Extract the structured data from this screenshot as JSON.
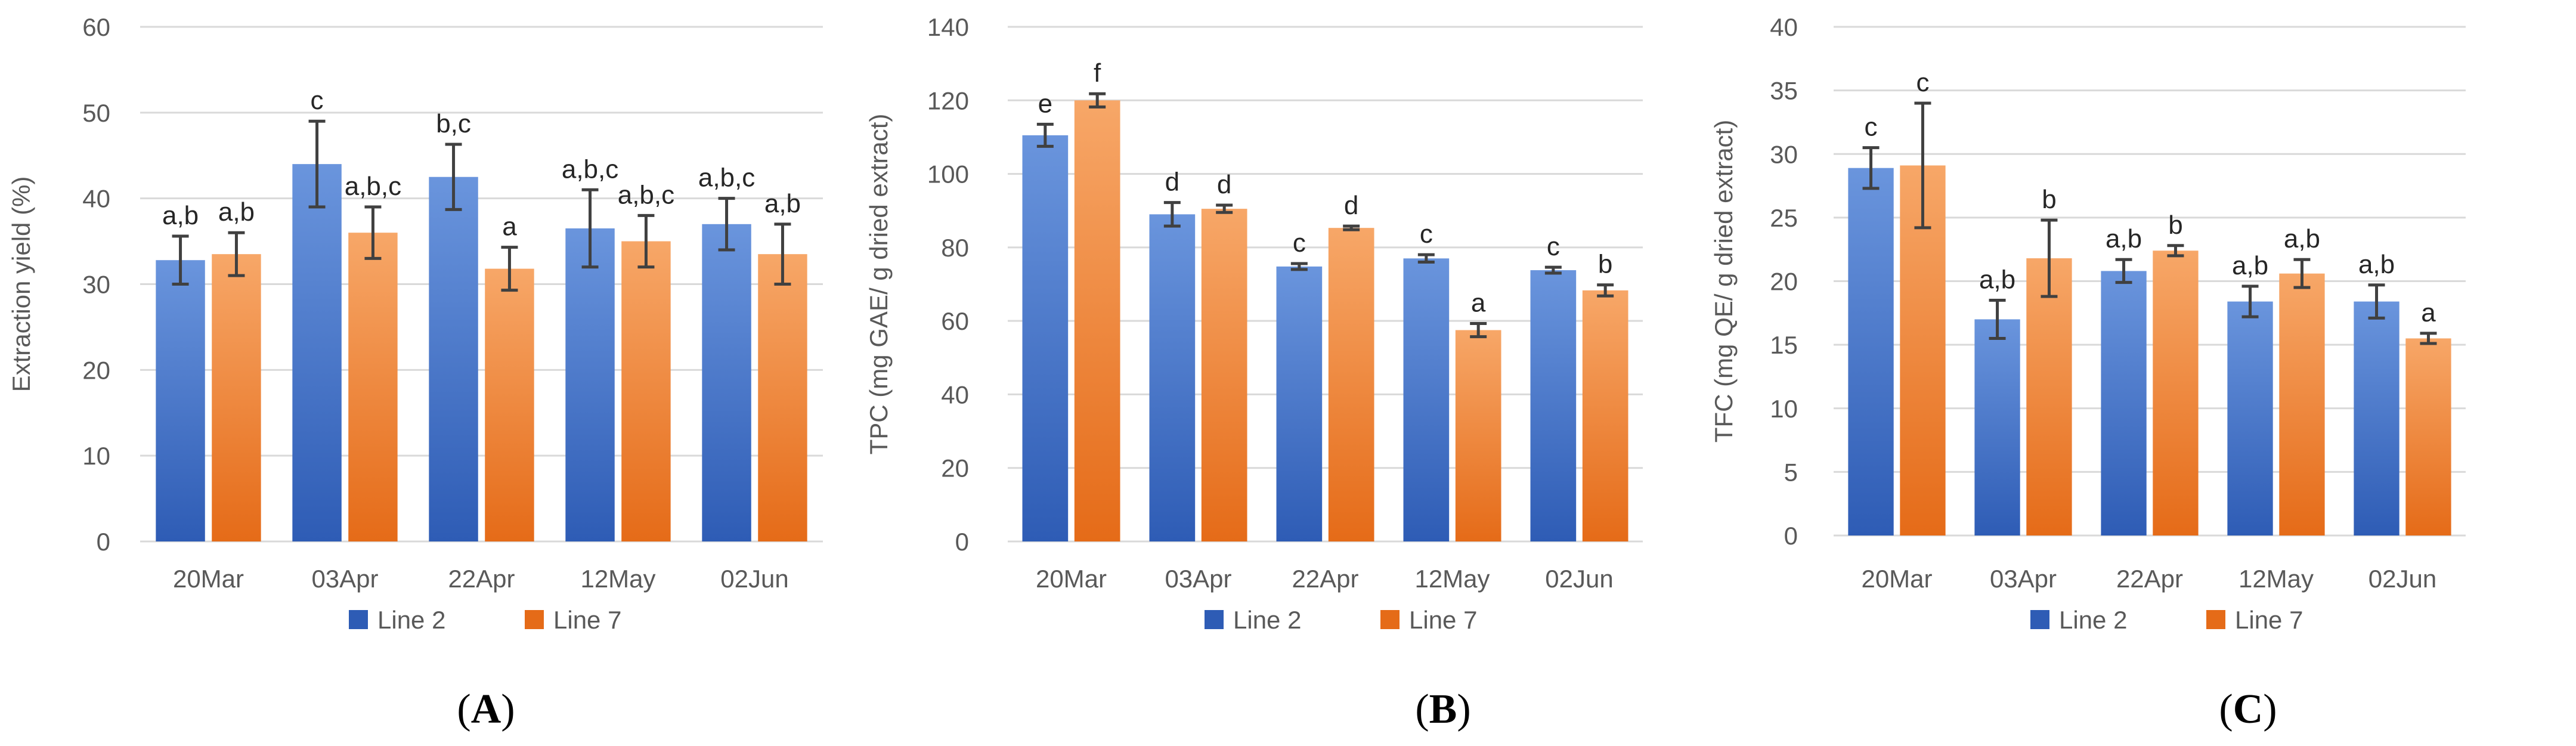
{
  "colors": {
    "line2_light": "#6a95dd",
    "line2_dark": "#2e5cb5",
    "line7_light": "#f7a768",
    "line7_dark": "#e56b18",
    "grid": "#d9d9d9",
    "text": "#595959"
  },
  "chart_data": [
    {
      "type": "bar",
      "panel": "A",
      "categories": [
        "20Mar",
        "03Apr",
        "22Apr",
        "12May",
        "02Jun"
      ],
      "series": [
        {
          "name": "Line 2",
          "values": [
            32.8,
            44.0,
            42.5,
            36.5,
            37.0
          ],
          "errors": [
            2.8,
            5.0,
            3.8,
            4.5,
            3.0
          ],
          "labels": [
            "a,b",
            "c",
            "b,c",
            "a,b,c",
            "a,b,c"
          ]
        },
        {
          "name": "Line 7",
          "values": [
            33.5,
            36.0,
            31.8,
            35.0,
            33.5
          ],
          "errors": [
            2.5,
            3.0,
            2.5,
            3.0,
            3.5
          ],
          "labels": [
            "a,b",
            "a,b,c",
            "a",
            "a,b,c",
            "a,b"
          ]
        }
      ],
      "ylabel": "Extraction yield (%)",
      "ylim": [
        0,
        60
      ],
      "yticks": [
        0,
        10,
        20,
        30,
        40,
        50,
        60
      ],
      "legend": [
        "Line 2",
        "Line 7"
      ],
      "legend_position": "bottom",
      "grid": true
    },
    {
      "type": "bar",
      "panel": "B",
      "categories": [
        "20Mar",
        "03Apr",
        "22Apr",
        "12May",
        "02Jun"
      ],
      "series": [
        {
          "name": "Line 2",
          "values": [
            110.5,
            89.0,
            74.8,
            77.0,
            73.8
          ],
          "errors": [
            3.0,
            3.2,
            0.8,
            1.0,
            0.8
          ],
          "labels": [
            "e",
            "d",
            "c",
            "c",
            "c"
          ]
        },
        {
          "name": "Line 7",
          "values": [
            120.0,
            90.5,
            85.3,
            57.5,
            68.3
          ],
          "errors": [
            1.8,
            1.0,
            0.5,
            1.8,
            1.5
          ],
          "labels": [
            "f",
            "d",
            "d",
            "a",
            "b"
          ]
        }
      ],
      "ylabel": "TPC (mg GAE/ g dried extract)",
      "ylim": [
        0,
        140
      ],
      "yticks": [
        0,
        20,
        40,
        60,
        80,
        100,
        120,
        140
      ],
      "legend": [
        "Line 2",
        "Line 7"
      ],
      "legend_position": "bottom",
      "grid": true
    },
    {
      "type": "bar",
      "panel": "C",
      "categories": [
        "20Mar",
        "03Apr",
        "22Apr",
        "12May",
        "02Jun"
      ],
      "series": [
        {
          "name": "Line 2",
          "values": [
            28.9,
            17.0,
            20.8,
            18.4,
            18.4
          ],
          "errors": [
            1.6,
            1.5,
            0.9,
            1.2,
            1.3
          ],
          "labels": [
            "c",
            "a,b",
            "a,b",
            "a,b",
            "a,b"
          ]
        },
        {
          "name": "Line 7",
          "values": [
            29.1,
            21.8,
            22.4,
            20.6,
            15.5
          ],
          "errors": [
            4.9,
            3.0,
            0.4,
            1.1,
            0.4
          ],
          "labels": [
            "c",
            "b",
            "b",
            "a,b",
            "a"
          ]
        }
      ],
      "ylabel": "TFC (mg QE/ g dried extract)",
      "ylim": [
        0,
        40
      ],
      "yticks": [
        0,
        5,
        10,
        15,
        20,
        25,
        30,
        35,
        40
      ],
      "legend": [
        "Line 2",
        "Line 7"
      ],
      "legend_position": "bottom",
      "grid": true
    }
  ],
  "panel_tags": [
    {
      "open": "(",
      "letter": "A",
      "close": ")"
    },
    {
      "open": "(",
      "letter": "B",
      "close": ")"
    },
    {
      "open": "(",
      "letter": "C",
      "close": ")"
    }
  ]
}
